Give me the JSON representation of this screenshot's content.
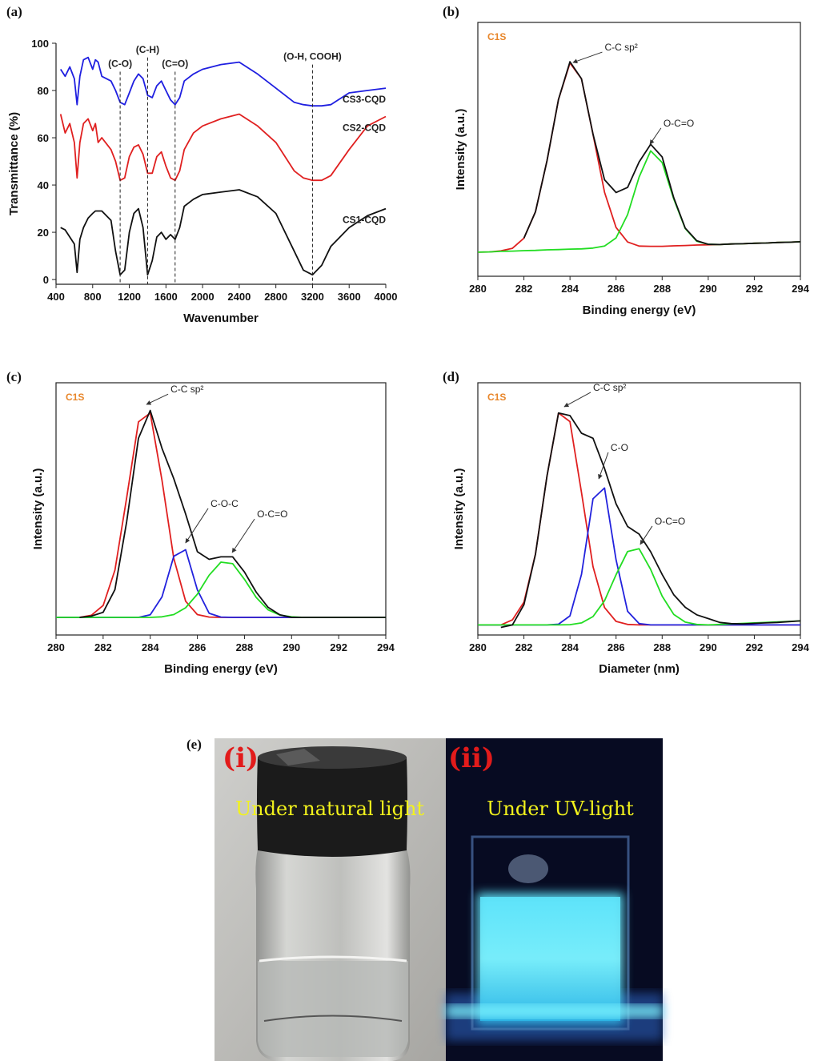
{
  "chart_data": [
    {
      "type": "line",
      "panel_label": "(a)",
      "xlabel": "Wavenumber",
      "ylabel": "Transmittance (%)",
      "frame": false,
      "x": [
        450,
        500,
        550,
        600,
        630,
        660,
        700,
        750,
        800,
        830,
        860,
        900,
        1000,
        1050,
        1100,
        1150,
        1200,
        1250,
        1300,
        1350,
        1400,
        1450,
        1500,
        1550,
        1600,
        1650,
        1700,
        1750,
        1800,
        1900,
        2000,
        2200,
        2400,
        2600,
        2800,
        3000,
        3100,
        3200,
        3300,
        3400,
        3600,
        3800,
        4000
      ],
      "xlim": [
        400,
        4000
      ],
      "xticks": [
        400,
        800,
        1200,
        1600,
        2000,
        2400,
        2800,
        3200,
        3600,
        4000
      ],
      "ylim": [
        -2,
        100
      ],
      "yticks": [
        0,
        20,
        40,
        60,
        80,
        100
      ],
      "series": [
        {
          "name": "CS3-CQD",
          "color": "#1f1fe0",
          "values": [
            89,
            86,
            90,
            85,
            74,
            86,
            93,
            94,
            89,
            93,
            92,
            86,
            84,
            80,
            75,
            74,
            79,
            84,
            87,
            85,
            78,
            77,
            82,
            84,
            80,
            76,
            74,
            77,
            84,
            87,
            89,
            91,
            92,
            87,
            81,
            75,
            74,
            73.5,
            73.5,
            74,
            79,
            80,
            81
          ]
        },
        {
          "name": "CS2-CQD",
          "color": "#e02020",
          "values": [
            70,
            62,
            66,
            58,
            43,
            58,
            66,
            68,
            63,
            66,
            58,
            60,
            55,
            50,
            42,
            43,
            52,
            56,
            57,
            53,
            45,
            45,
            52,
            54,
            48,
            43,
            42,
            46,
            55,
            62,
            65,
            68,
            70,
            65,
            58,
            46,
            43,
            42,
            42,
            44,
            55,
            65,
            69
          ]
        },
        {
          "name": "CS1-CQD",
          "color": "#111111",
          "values": [
            22,
            21,
            18,
            15,
            3,
            17,
            22,
            26,
            28,
            29,
            29,
            29,
            25,
            12,
            2,
            4,
            20,
            28,
            30,
            22,
            2,
            8,
            18,
            20,
            17,
            19,
            17,
            22,
            31,
            34,
            36,
            37,
            38,
            35,
            28,
            12,
            4,
            2,
            6,
            14,
            22,
            27,
            30
          ]
        }
      ],
      "annotations": [
        {
          "text": "(C-O)",
          "x": 1100,
          "y": 90
        },
        {
          "text": "(C-H)",
          "x": 1400,
          "y": 96
        },
        {
          "text": "(C=O)",
          "x": 1700,
          "y": 90
        },
        {
          "text": "(O-H, COOH)",
          "x": 3200,
          "y": 93
        }
      ]
    },
    {
      "type": "line",
      "panel_label": "(b)",
      "xlabel": "Binding energy (eV)",
      "ylabel": "Intensity (a.u.)",
      "frame": true,
      "note": "C1S",
      "x": [
        280,
        280.5,
        281,
        281.5,
        282,
        282.5,
        283,
        283.5,
        284,
        284.5,
        285,
        285.5,
        286,
        286.5,
        287,
        287.5,
        288,
        288.5,
        289,
        289.5,
        290,
        290.5,
        291,
        291.5,
        292,
        292.5,
        293,
        293.5,
        294
      ],
      "xlim": [
        280,
        294
      ],
      "xticks": [
        280,
        282,
        284,
        286,
        288,
        290,
        292,
        294
      ],
      "ylim": [
        0,
        100
      ],
      "series": [
        {
          "color": "#e02020",
          "values": [
            9.5,
            9.6,
            10,
            11,
            15,
            25.4,
            45.5,
            69.7,
            84,
            77.8,
            55.9,
            33.1,
            19.2,
            13.5,
            11.9,
            11.8,
            11.8,
            12,
            12.1,
            12.3,
            12.4,
            12.5,
            12.7,
            12.8,
            13,
            13.1,
            13.3,
            13.4,
            13.6
          ]
        },
        {
          "color": "#22dd22",
          "values": [
            9.5,
            9.6,
            9.8,
            9.9,
            10.1,
            10.2,
            10.4,
            10.5,
            10.7,
            10.8,
            11.1,
            11.9,
            15.1,
            24.3,
            39.1,
            49.4,
            44.8,
            30.5,
            18.8,
            13.8,
            12.6,
            12.5,
            12.7,
            12.8,
            13,
            13.1,
            13.3,
            13.4,
            13.6
          ]
        },
        {
          "color": "#111111",
          "values": [
            null,
            null,
            null,
            null,
            15,
            25.4,
            45.5,
            69.7,
            84.5,
            77.8,
            56,
            38,
            33,
            35,
            45,
            52,
            47,
            31,
            19,
            14,
            12.6,
            12.5,
            12.7,
            12.8,
            13,
            13.1,
            13.3,
            13.4,
            13.6
          ]
        }
      ],
      "annotations": [
        {
          "text": "C-C sp²",
          "x": 284.13,
          "y": 84.2,
          "label_x": 285.4,
          "label_y": 88.3
        },
        {
          "text": "O-C=O",
          "x": 287.47,
          "y": 52,
          "label_x": 287.95,
          "label_y": 58.4
        }
      ]
    },
    {
      "type": "line",
      "panel_label": "(c)",
      "xlabel": "Binding energy (eV)",
      "ylabel": "Intensity (a.u.)",
      "frame": true,
      "note": "C1S",
      "x": [
        280,
        280.5,
        281,
        281.5,
        282,
        282.5,
        283,
        283.5,
        284,
        284.5,
        285,
        285.5,
        286,
        286.5,
        287,
        287.5,
        288,
        288.5,
        289,
        289.5,
        290,
        290.5,
        291,
        291.5,
        292,
        292.5,
        293,
        293.5,
        294
      ],
      "xlim": [
        280,
        294
      ],
      "xticks": [
        280,
        282,
        284,
        286,
        288,
        290,
        292,
        294
      ],
      "ylim": [
        0,
        100
      ],
      "series": [
        {
          "color": "#e02020",
          "values": [
            7,
            7,
            7,
            7.8,
            11.7,
            25.7,
            54.5,
            84.5,
            88,
            61.3,
            30.4,
            13.4,
            8.1,
            7.1,
            7,
            7,
            7,
            7,
            7,
            7,
            7,
            7,
            7,
            7,
            7,
            7,
            7,
            7,
            7
          ]
        },
        {
          "color": "#2222dd",
          "values": [
            7,
            7,
            7,
            7,
            7,
            7,
            7,
            7,
            8,
            15.1,
            31.2,
            33.8,
            17.9,
            8.6,
            7.1,
            7,
            7,
            7,
            7,
            7,
            7,
            7,
            7,
            7,
            7,
            7,
            7,
            7,
            7
          ]
        },
        {
          "color": "#22dd22",
          "values": [
            7,
            7,
            7,
            7,
            7,
            7,
            7,
            7,
            7,
            7.2,
            8.1,
            10.8,
            16.2,
            23.7,
            28.9,
            28.3,
            22.1,
            14.9,
            10,
            7.9,
            7.2,
            7,
            7,
            7,
            7,
            7,
            7,
            7,
            7
          ]
        },
        {
          "color": "#111111",
          "values": [
            null,
            null,
            7,
            7.5,
            9,
            18,
            45,
            78,
            89,
            74,
            62,
            48,
            33,
            30,
            31,
            31,
            25,
            17,
            11,
            8,
            7,
            7,
            7,
            7,
            7,
            7,
            7,
            7,
            7
          ]
        }
      ],
      "annotations": [
        {
          "text": "C-C sp²",
          "x": 283.84,
          "y": 91.4,
          "label_x": 284.76,
          "label_y": 95.5
        },
        {
          "text": "C-O-C",
          "x": 285.5,
          "y": 36.5,
          "label_x": 286.46,
          "label_y": 50.2
        },
        {
          "text": "O-C=O",
          "x": 287.48,
          "y": 32.7,
          "label_x": 288.43,
          "label_y": 46
        }
      ]
    },
    {
      "type": "line",
      "panel_label": "(d)",
      "xlabel": "Diameter (nm)",
      "ylabel": "Intensity (a.u.)",
      "frame": true,
      "note": "C1S",
      "x": [
        280,
        280.5,
        281,
        281.5,
        282,
        282.5,
        283,
        283.5,
        284,
        284.5,
        285,
        285.5,
        286,
        286.5,
        287,
        287.5,
        288,
        288.5,
        289,
        289.5,
        290,
        290.5,
        291,
        291.5,
        292,
        292.5,
        293,
        293.5,
        294
      ],
      "xlim": [
        280,
        294
      ],
      "xticks": [
        280,
        282,
        284,
        286,
        288,
        290,
        292,
        294
      ],
      "ylim": [
        0,
        100
      ],
      "series": [
        {
          "color": "#e02020",
          "values": [
            4,
            4,
            4,
            6,
            13,
            32.1,
            63,
            88,
            84.6,
            56.5,
            27.1,
            10.9,
            5.4,
            4.2,
            4,
            4,
            4,
            4,
            4,
            4,
            4,
            4,
            4,
            4,
            4,
            4,
            4,
            4,
            4
          ]
        },
        {
          "color": "#2222dd",
          "values": [
            4,
            4,
            4,
            4,
            4,
            4,
            4,
            4.3,
            7.6,
            24,
            54,
            58.3,
            29.8,
            9.4,
            4.5,
            4,
            4,
            4,
            4,
            4,
            4,
            4,
            4,
            4,
            4,
            4,
            4,
            4,
            4
          ]
        },
        {
          "color": "#22dd22",
          "values": [
            4,
            4,
            4,
            4,
            4,
            4,
            4,
            4,
            4.1,
            4.8,
            7.3,
            13.6,
            23.9,
            33.1,
            34.2,
            26,
            15.4,
            8.2,
            5.1,
            4.2,
            4,
            4.2,
            4.4,
            4.6,
            4.8,
            5,
            5.2,
            5.4,
            5.6
          ]
        },
        {
          "color": "#111111",
          "values": [
            null,
            null,
            3,
            4,
            12,
            32,
            63,
            88,
            87,
            80,
            78,
            66,
            52,
            43,
            40,
            33,
            24,
            16,
            11,
            8,
            6.5,
            5,
            4.5,
            4.4,
            4.6,
            4.8,
            5,
            5.3,
            5.6
          ]
        }
      ],
      "annotations": [
        {
          "text": "C-C sp²",
          "x": 283.75,
          "y": 90.5,
          "label_x": 284.9,
          "label_y": 96.2
        },
        {
          "text": "C-O",
          "x": 285.25,
          "y": 61.9,
          "label_x": 285.66,
          "label_y": 72.4
        },
        {
          "text": "O-C=O",
          "x": 287.05,
          "y": 35.9,
          "label_x": 287.57,
          "label_y": 43.2
        }
      ]
    }
  ],
  "photo_panel": {
    "label": "(e)",
    "photos": [
      {
        "label": "(i)",
        "caption": "Under natural light"
      },
      {
        "label": "(ii)",
        "caption": "Under UV-light"
      }
    ]
  }
}
